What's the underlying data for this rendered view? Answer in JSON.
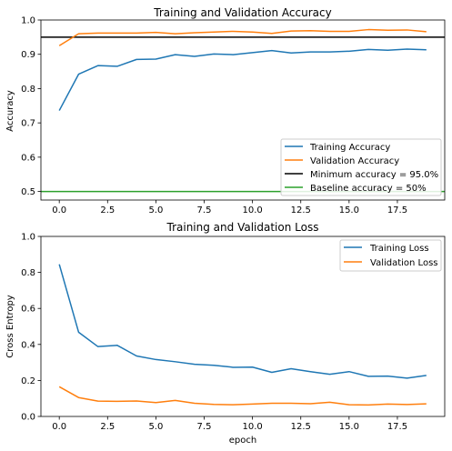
{
  "chart_data": [
    {
      "type": "line",
      "title": "Training and Validation Accuracy",
      "xlabel": "",
      "ylabel": "Accuracy",
      "xlim": [
        -0.95,
        19.95
      ],
      "ylim": [
        0.475,
        1.0
      ],
      "xticks": [
        0.0,
        2.5,
        5.0,
        7.5,
        10.0,
        12.5,
        15.0,
        17.5
      ],
      "xtick_labels": [
        "0.0",
        "2.5",
        "5.0",
        "7.5",
        "10.0",
        "12.5",
        "15.0",
        "17.5"
      ],
      "yticks": [
        0.5,
        0.6,
        0.7,
        0.8,
        0.9,
        1.0
      ],
      "ytick_labels": [
        "0.5",
        "0.6",
        "0.7",
        "0.8",
        "0.9",
        "1.0"
      ],
      "legend_position": "lower-right",
      "series": [
        {
          "name": "Training Accuracy",
          "color": "#1f77b4",
          "x": [
            0,
            1,
            2,
            3,
            4,
            5,
            6,
            7,
            8,
            9,
            10,
            11,
            12,
            13,
            14,
            15,
            16,
            17,
            18,
            19
          ],
          "values": [
            0.736,
            0.842,
            0.867,
            0.865,
            0.885,
            0.886,
            0.899,
            0.894,
            0.901,
            0.899,
            0.905,
            0.911,
            0.904,
            0.907,
            0.907,
            0.909,
            0.914,
            0.912,
            0.915,
            0.913
          ]
        },
        {
          "name": "Validation Accuracy",
          "color": "#ff7f0e",
          "x": [
            0,
            1,
            2,
            3,
            4,
            5,
            6,
            7,
            8,
            9,
            10,
            11,
            12,
            13,
            14,
            15,
            16,
            17,
            18,
            19
          ],
          "values": [
            0.925,
            0.96,
            0.962,
            0.962,
            0.962,
            0.964,
            0.96,
            0.963,
            0.965,
            0.967,
            0.965,
            0.961,
            0.968,
            0.969,
            0.967,
            0.967,
            0.972,
            0.97,
            0.971,
            0.966
          ]
        }
      ],
      "hlines": [
        {
          "name": "Minimum accuracy = 95.0%",
          "y": 0.95,
          "color": "#000000"
        },
        {
          "name": "Baseline accuracy = 50%",
          "y": 0.5,
          "color": "#2ca02c"
        }
      ]
    },
    {
      "type": "line",
      "title": "Training and Validation Loss",
      "xlabel": "epoch",
      "ylabel": "Cross Entropy",
      "xlim": [
        -0.95,
        19.95
      ],
      "ylim": [
        0.0,
        1.0
      ],
      "xticks": [
        0.0,
        2.5,
        5.0,
        7.5,
        10.0,
        12.5,
        15.0,
        17.5
      ],
      "xtick_labels": [
        "0.0",
        "2.5",
        "5.0",
        "7.5",
        "10.0",
        "12.5",
        "15.0",
        "17.5"
      ],
      "yticks": [
        0.0,
        0.2,
        0.4,
        0.6,
        0.8,
        1.0
      ],
      "ytick_labels": [
        "0.0",
        "0.2",
        "0.4",
        "0.6",
        "0.8",
        "1.0"
      ],
      "legend_position": "upper-right",
      "series": [
        {
          "name": "Training Loss",
          "color": "#1f77b4",
          "x": [
            0,
            1,
            2,
            3,
            4,
            5,
            6,
            7,
            8,
            9,
            10,
            11,
            12,
            13,
            14,
            15,
            16,
            17,
            18,
            19
          ],
          "values": [
            0.845,
            0.468,
            0.388,
            0.395,
            0.336,
            0.316,
            0.304,
            0.29,
            0.284,
            0.273,
            0.274,
            0.245,
            0.265,
            0.249,
            0.234,
            0.249,
            0.223,
            0.224,
            0.213,
            0.228
          ]
        },
        {
          "name": "Validation Loss",
          "color": "#ff7f0e",
          "x": [
            0,
            1,
            2,
            3,
            4,
            5,
            6,
            7,
            8,
            9,
            10,
            11,
            12,
            13,
            14,
            15,
            16,
            17,
            18,
            19
          ],
          "values": [
            0.165,
            0.105,
            0.085,
            0.084,
            0.086,
            0.077,
            0.089,
            0.073,
            0.067,
            0.065,
            0.069,
            0.073,
            0.073,
            0.071,
            0.079,
            0.065,
            0.064,
            0.069,
            0.066,
            0.07
          ]
        }
      ]
    }
  ]
}
